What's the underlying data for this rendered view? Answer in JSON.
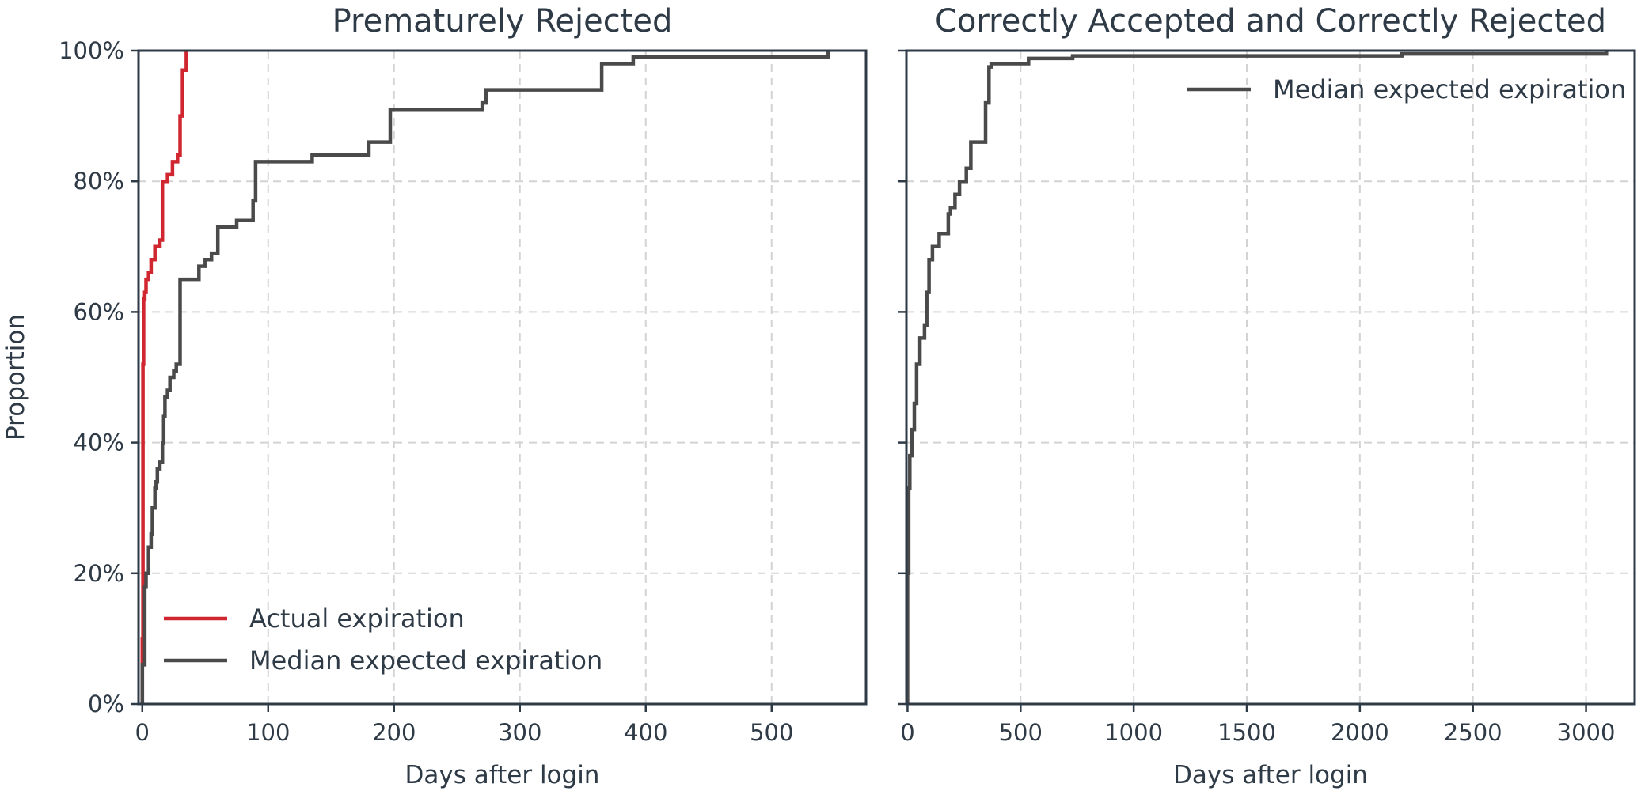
{
  "chart_data": [
    {
      "type": "line",
      "step": true,
      "title": "Premat​urely Rejected",
      "xlabel": "Days after login",
      "ylabel": "Proportion",
      "xlim": [
        -3,
        575
      ],
      "ylim": [
        0,
        100
      ],
      "xticks": [
        0,
        100,
        200,
        300,
        400,
        500
      ],
      "xtick_labels": [
        "0",
        "100",
        "200",
        "300",
        "400",
        "500"
      ],
      "yticks": [
        0,
        20,
        40,
        60,
        80,
        100
      ],
      "ytick_labels": [
        "0%",
        "20%",
        "40%",
        "60%",
        "80%",
        "100%"
      ],
      "grid": true,
      "legend_position": "lower-left",
      "series": [
        {
          "name": "Actual expiration",
          "color": "#d0262f",
          "x": [
            0,
            0,
            0.5,
            0.5,
            1,
            1,
            2,
            2,
            3,
            3,
            5,
            5,
            7,
            7,
            10,
            10,
            14,
            14,
            16,
            16,
            20,
            20,
            24,
            24,
            28,
            28,
            30,
            30,
            32,
            32,
            35,
            35
          ],
          "y": [
            0,
            10,
            10,
            52,
            52,
            62,
            62,
            63,
            63,
            65,
            65,
            66,
            66,
            68,
            68,
            70,
            70,
            71,
            71,
            80,
            80,
            81,
            81,
            83,
            83,
            84,
            84,
            90,
            90,
            97,
            97,
            100
          ]
        },
        {
          "name": "Median expected expiration",
          "color": "#4a4a4a",
          "x": [
            0,
            0,
            2,
            2,
            3,
            3,
            5,
            5,
            7,
            7,
            8,
            8,
            10,
            10,
            11,
            11,
            12,
            12,
            14,
            14,
            16,
            16,
            17,
            17,
            18,
            18,
            20,
            20,
            22,
            22,
            25,
            25,
            27,
            27,
            30,
            30,
            32,
            32,
            45,
            45,
            50,
            50,
            55,
            55,
            60,
            60,
            75,
            75,
            88,
            88,
            90,
            90,
            135,
            135,
            180,
            180,
            197,
            197,
            270,
            270,
            273,
            273,
            365,
            365,
            390,
            390,
            545,
            545
          ],
          "y": [
            0,
            6,
            6,
            18,
            18,
            20,
            20,
            24,
            24,
            26,
            26,
            30,
            30,
            33,
            33,
            34,
            34,
            36,
            36,
            37,
            37,
            40,
            40,
            44,
            44,
            47,
            47,
            48,
            48,
            50,
            50,
            51,
            51,
            52,
            52,
            65,
            65,
            65,
            65,
            67,
            67,
            68,
            68,
            69,
            69,
            73,
            73,
            74,
            74,
            77,
            77,
            83,
            83,
            84,
            84,
            86,
            86,
            91,
            91,
            92,
            92,
            94,
            94,
            98,
            98,
            99,
            99,
            100
          ]
        }
      ]
    },
    {
      "type": "line",
      "step": true,
      "title": "Correctly Accepted and Correctly Rejected",
      "xlabel": "Days after login",
      "ylabel": "",
      "xlim": [
        -5,
        3215
      ],
      "ylim": [
        0,
        100
      ],
      "xticks": [
        0,
        500,
        1000,
        1500,
        2000,
        2500,
        3000
      ],
      "xtick_labels": [
        "0",
        "500",
        "1000",
        "1500",
        "2000",
        "2500",
        "3000"
      ],
      "yticks": [
        0,
        20,
        40,
        60,
        80,
        100
      ],
      "grid": true,
      "legend_position": "top-right",
      "series": [
        {
          "name": "Median expected expiration",
          "color": "#4a4a4a",
          "x": [
            0,
            0,
            5,
            5,
            10,
            10,
            20,
            20,
            30,
            30,
            40,
            40,
            55,
            55,
            75,
            75,
            85,
            85,
            95,
            95,
            110,
            110,
            140,
            140,
            180,
            180,
            190,
            190,
            210,
            210,
            230,
            230,
            260,
            260,
            280,
            280,
            345,
            345,
            360,
            360,
            370,
            370,
            535,
            535,
            730,
            730,
            2185,
            2185,
            3090,
            3090
          ],
          "y": [
            0,
            20,
            20,
            33,
            33,
            38,
            38,
            42,
            42,
            46,
            46,
            52,
            52,
            56,
            56,
            58,
            58,
            63,
            63,
            68,
            68,
            70,
            70,
            72,
            72,
            75,
            75,
            76,
            76,
            78,
            78,
            80,
            80,
            82,
            82,
            86,
            86,
            92,
            92,
            97.5,
            97.5,
            98,
            98,
            98.8,
            98.8,
            99.2,
            99.2,
            99.5,
            99.5,
            100
          ]
        }
      ]
    }
  ]
}
